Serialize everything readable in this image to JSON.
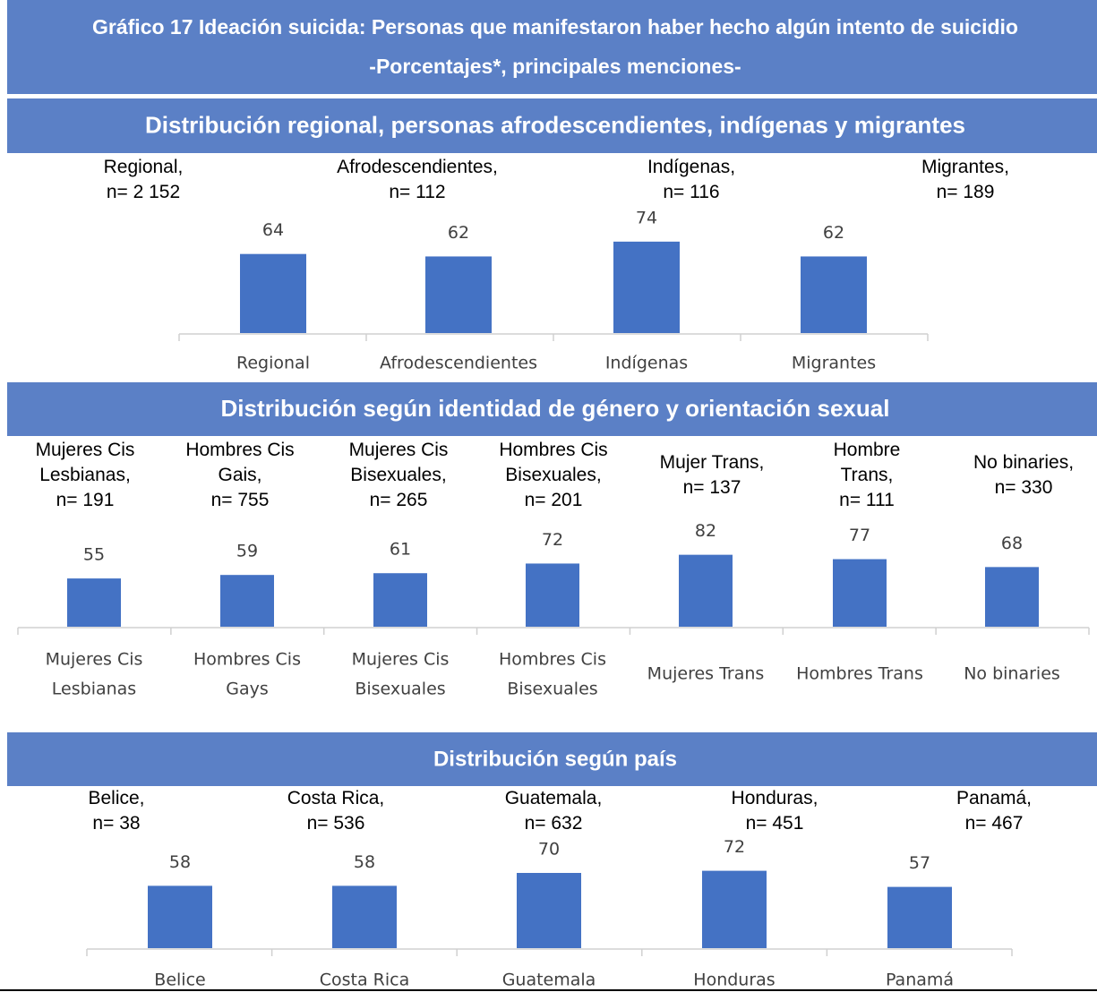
{
  "title": "Gráfico 17 Ideación suicida: Personas que manifestaron haber hecho algún intento de suicidio",
  "subtitle": "-Porcentajes*, principales menciones-",
  "chart_data": [
    {
      "type": "bar",
      "title": "Distribución regional, personas afrodescendientes, indígenas y migrantes",
      "annotations": [
        "Regional,\nn= 2 152",
        "Afrodescendientes,\nn= 112",
        "Indígenas,\nn= 116",
        "Migrantes,\nn= 189"
      ],
      "categories": [
        "Regional",
        "Afrodescendientes",
        "Indígenas",
        "Migrantes"
      ],
      "values": [
        64,
        62,
        74,
        62
      ],
      "color": "#4472c4"
    },
    {
      "type": "bar",
      "title": "Distribución según identidad de género y orientación sexual",
      "annotations": [
        "Mujeres Cis\nLesbianas,\nn= 191",
        "Hombres Cis\nGais,\nn= 755",
        "Mujeres Cis\nBisexuales,\nn= 265",
        "Hombres Cis\nBisexuales,\nn= 201",
        "Mujer Trans,\nn= 137",
        "Hombre\nTrans,\nn= 111",
        "No binaries,\nn= 330"
      ],
      "categories": [
        "Mujeres Cis\nLesbianas",
        "Hombres Cis\nGays",
        "Mujeres Cis\nBisexuales",
        "Hombres Cis\nBisexuales",
        "Mujeres Trans",
        "Hombres Trans",
        "No binaries"
      ],
      "values": [
        55,
        59,
        61,
        72,
        82,
        77,
        68
      ],
      "color": "#4472c4"
    },
    {
      "type": "bar",
      "title": "Distribución según país",
      "annotations": [
        "Belice,\nn= 38",
        "Costa Rica,\nn= 536",
        "Guatemala,\nn= 632",
        "Honduras,\nn= 451",
        "Panamá,\nn= 467"
      ],
      "categories": [
        "Belice",
        "Costa Rica",
        "Guatemala",
        "Honduras",
        "Panamá"
      ],
      "values": [
        58,
        58,
        70,
        72,
        57
      ],
      "color": "#4472c4"
    }
  ]
}
